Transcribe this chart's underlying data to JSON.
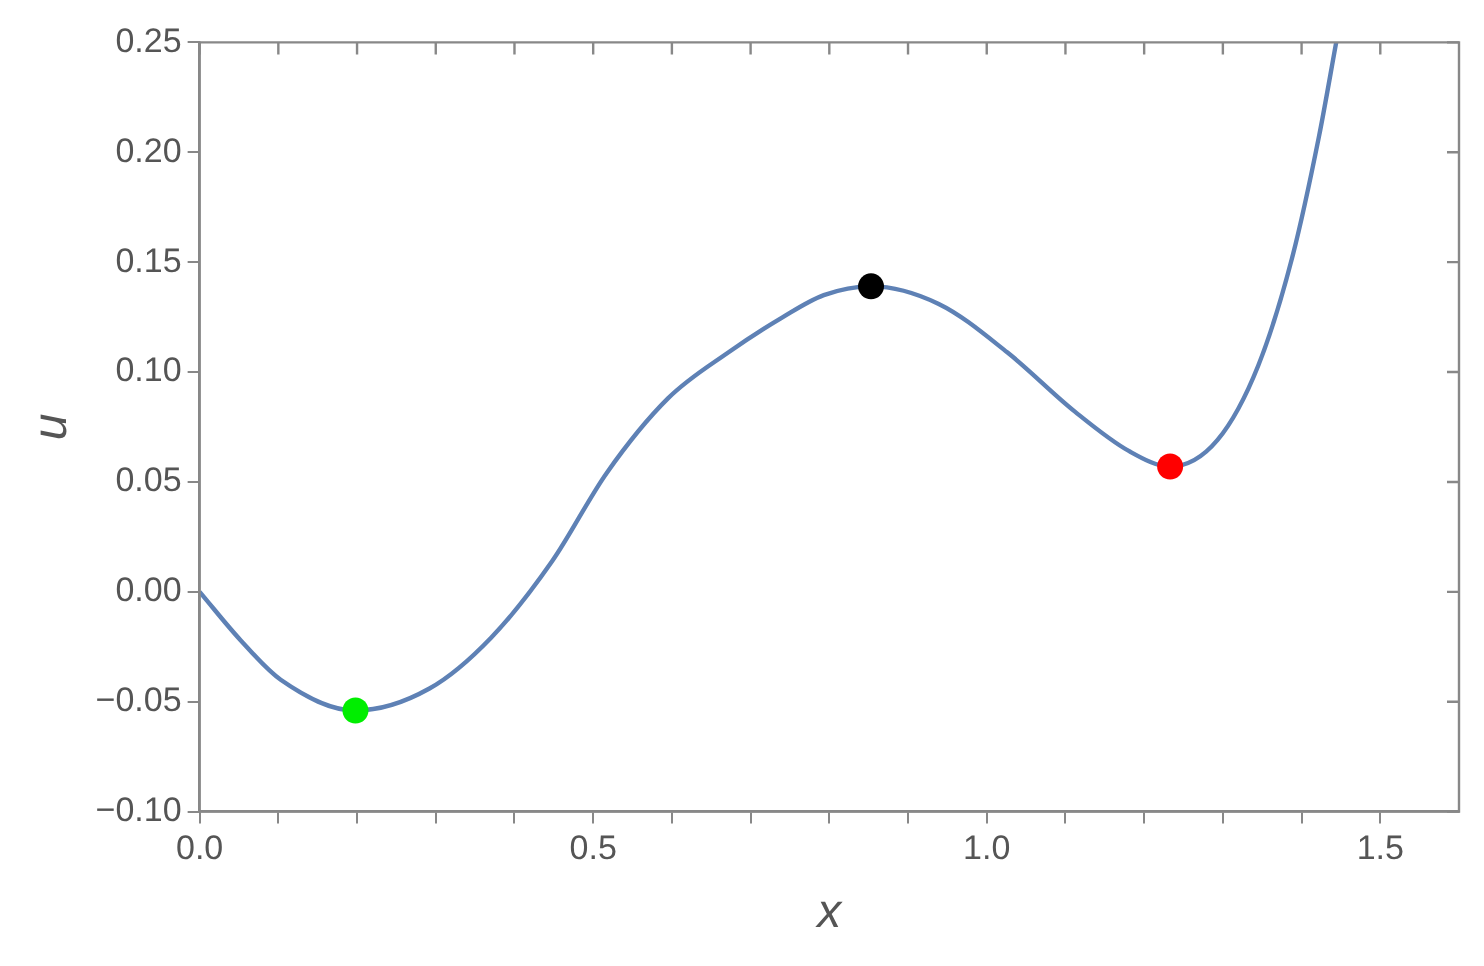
{
  "chart_data": {
    "type": "line",
    "xlabel": "x",
    "ylabel": "u",
    "xlim": [
      0,
      1.6
    ],
    "ylim": [
      -0.1,
      0.25
    ],
    "xticks": [
      {
        "value": 0,
        "label": "0.0"
      },
      {
        "value": 0.1,
        "label": null
      },
      {
        "value": 0.2,
        "label": null
      },
      {
        "value": 0.3,
        "label": null
      },
      {
        "value": 0.4,
        "label": null
      },
      0.5,
      {
        "value": 0.6,
        "label": null
      },
      {
        "value": 0.7,
        "label": null
      },
      {
        "value": 0.8,
        "label": null
      },
      {
        "value": 0.9,
        "label": null
      },
      {
        "value": 1,
        "label": "1.0"
      },
      {
        "value": 1.1,
        "label": null
      },
      {
        "value": 1.2,
        "label": null
      },
      {
        "value": 1.3,
        "label": null
      },
      {
        "value": 1.4,
        "label": null
      },
      1.5
    ],
    "yticks": [
      {
        "value": -0.1,
        "label": "−0.10"
      },
      {
        "value": -0.05,
        "label": "−0.05"
      },
      {
        "value": 0,
        "label": "0.00"
      },
      {
        "value": 0.05,
        "label": "0.05"
      },
      {
        "value": 0.1,
        "label": "0.10"
      },
      {
        "value": 0.15,
        "label": "0.15"
      },
      {
        "value": 0.2,
        "label": "0.20"
      },
      {
        "value": 0.25,
        "label": "0.25"
      }
    ],
    "grid": false,
    "legend": false,
    "series": [
      {
        "color": "#5e81b5",
        "marker": "none",
        "x": [
          0,
          0.052,
          0.103,
          0.198,
          0.292,
          0.37,
          0.448,
          0.517,
          0.595,
          0.672,
          0.741,
          0.793,
          0.853,
          0.939,
          1.026,
          1.112,
          1.181,
          1.233,
          1.293,
          1.345,
          1.388,
          1.422,
          1.444
        ],
        "values": [
          0,
          -0.022,
          -0.04,
          -0.054,
          -0.044,
          -0.021,
          0.014,
          0.054,
          0.088,
          0.109,
          0.125,
          0.135,
          0.139,
          0.131,
          0.109,
          0.082,
          0.064,
          0.057,
          0.069,
          0.103,
          0.152,
          0.207,
          0.25
        ]
      },
      {
        "type": "scatter",
        "marker": "circle",
        "colors": [
          "#00ee00",
          "#000000",
          "#ff0000"
        ],
        "x": [
          0.198,
          0.853,
          1.233
        ],
        "values": [
          -0.054,
          0.139,
          0.057
        ]
      }
    ]
  }
}
